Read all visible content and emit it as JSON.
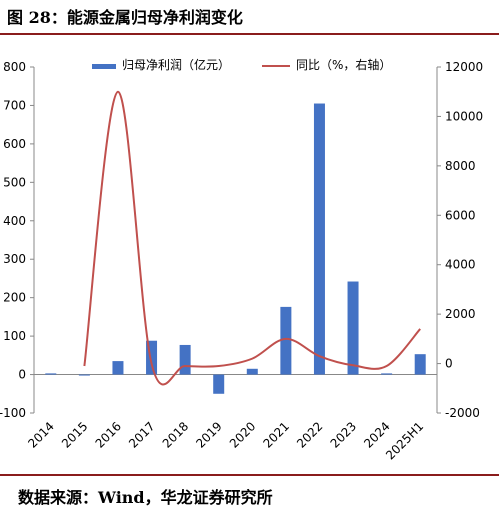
{
  "header": {
    "title": "图 28：能源金属归母净利润变化"
  },
  "footer": {
    "source": "数据来源：Wind，华龙证券研究所"
  },
  "chart_data": {
    "type": "bar+line",
    "categories": [
      "2014",
      "2015",
      "2016",
      "2017",
      "2018",
      "2019",
      "2020",
      "2021",
      "2022",
      "2023",
      "2024",
      "2025H1"
    ],
    "series": [
      {
        "name": "归母净利润（亿元）",
        "type": "bar",
        "axis": "left",
        "values": [
          3,
          0,
          35,
          88,
          77,
          -50,
          15,
          176,
          705,
          242,
          3,
          53
        ]
      },
      {
        "name": "同比（%，右轴）",
        "type": "line",
        "axis": "right",
        "values": [
          null,
          -100,
          11000,
          0,
          -100,
          -100,
          200,
          1000,
          300,
          -70,
          -100,
          1400
        ]
      }
    ],
    "left_axis": {
      "ylim": [
        -100,
        800
      ],
      "ticks": [
        "-100",
        "0",
        "100",
        "200",
        "300",
        "400",
        "500",
        "600",
        "700",
        "800"
      ]
    },
    "right_axis": {
      "ylim": [
        -2000,
        12000
      ],
      "ticks": [
        "-2000",
        "0",
        "2000",
        "4000",
        "6000",
        "8000",
        "10000",
        "12000"
      ]
    },
    "legend": "top",
    "grid": false,
    "colors": {
      "bar": "#4472c4",
      "line": "#c0504d",
      "rule": "#8a1c1c"
    }
  }
}
